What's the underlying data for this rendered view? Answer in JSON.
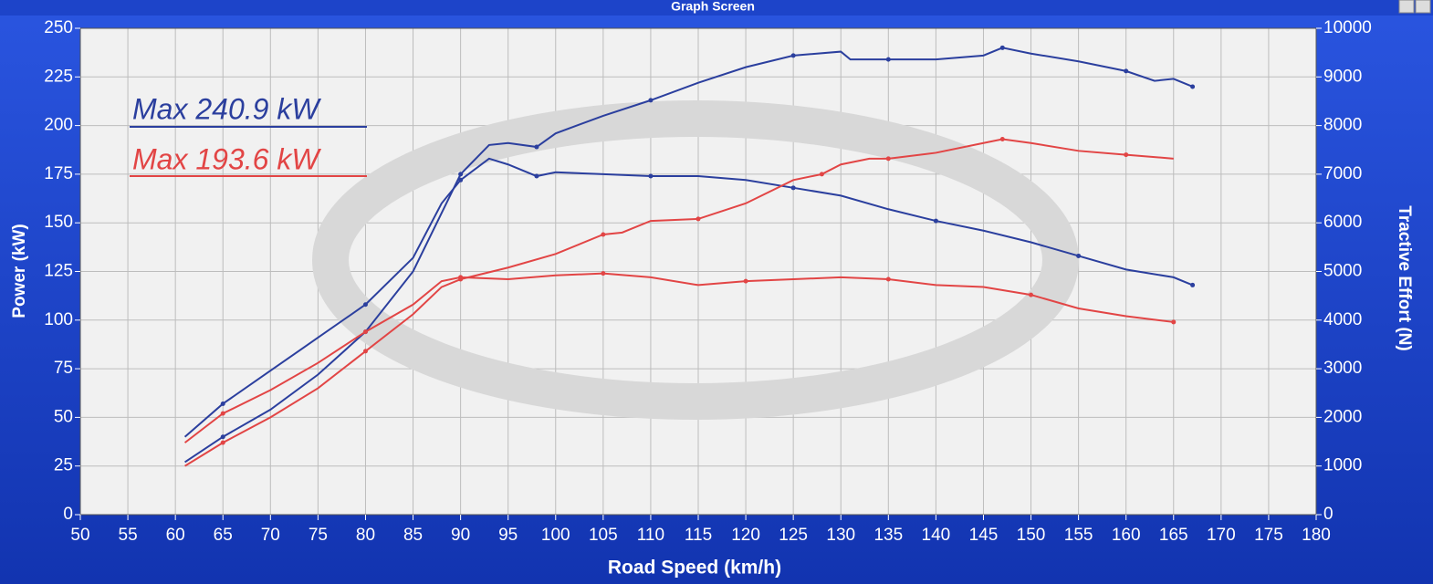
{
  "window_title": "Graph Screen",
  "chart_data": {
    "type": "line",
    "xlabel": "Road Speed (km/h)",
    "ylabel": "Power (kW)",
    "y2label": "Tractive Effort (N)",
    "annotations": [
      {
        "text": "Max 240.9 kW",
        "color": "#2b3f9e"
      },
      {
        "text": "Max 193.6 kW",
        "color": "#e24545"
      }
    ],
    "xlim": [
      50,
      180
    ],
    "xticks": [
      50,
      55,
      60,
      65,
      70,
      75,
      80,
      85,
      90,
      95,
      100,
      105,
      110,
      115,
      120,
      125,
      130,
      135,
      140,
      145,
      150,
      155,
      160,
      165,
      170,
      175,
      180
    ],
    "ylim": [
      0,
      250
    ],
    "yticks": [
      0,
      25,
      50,
      75,
      100,
      125,
      150,
      175,
      200,
      225,
      250
    ],
    "y2lim": [
      0,
      10000
    ],
    "y2ticks": [
      0,
      1000,
      2000,
      3000,
      4000,
      5000,
      6000,
      7000,
      8000,
      9000,
      10000
    ],
    "grid": true,
    "series": [
      {
        "color": "#2b3f9e",
        "axis": "y",
        "x": [
          61,
          65,
          70,
          75,
          80,
          85,
          88,
          90,
          93,
          95,
          98,
          100,
          105,
          110,
          115,
          120,
          125,
          130,
          131,
          135,
          140,
          145,
          147,
          150,
          155,
          160,
          163,
          165,
          167
        ],
        "values": [
          27,
          40,
          54,
          72,
          94,
          125,
          155,
          175,
          190,
          191,
          189,
          196,
          205,
          213,
          222,
          230,
          236,
          238,
          234,
          234,
          234,
          236,
          240,
          237,
          233,
          228,
          223,
          224,
          220
        ]
      },
      {
        "color": "#2b3f9e",
        "axis": "y2",
        "x": [
          61,
          65,
          70,
          75,
          80,
          85,
          88,
          90,
          93,
          95,
          98,
          100,
          105,
          110,
          115,
          120,
          125,
          130,
          135,
          140,
          145,
          150,
          155,
          160,
          165,
          167
        ],
        "values": [
          1600,
          2280,
          2960,
          3640,
          4320,
          5280,
          6400,
          6880,
          7320,
          7200,
          6960,
          7040,
          7000,
          6960,
          6960,
          6880,
          6720,
          6560,
          6280,
          6040,
          5840,
          5600,
          5320,
          5040,
          4880,
          4720
        ]
      },
      {
        "color": "#e24545",
        "axis": "y",
        "x": [
          61,
          65,
          70,
          75,
          80,
          85,
          88,
          90,
          95,
          100,
          105,
          107,
          110,
          115,
          120,
          125,
          128,
          130,
          133,
          135,
          140,
          145,
          147,
          150,
          155,
          160,
          165
        ],
        "values": [
          25,
          37,
          50,
          65,
          84,
          103,
          117,
          121,
          127,
          134,
          144,
          145,
          151,
          152,
          160,
          172,
          175,
          180,
          183,
          183,
          186,
          191,
          193,
          191,
          187,
          185,
          183
        ]
      },
      {
        "color": "#e24545",
        "axis": "y2",
        "x": [
          61,
          65,
          70,
          75,
          80,
          85,
          88,
          90,
          95,
          100,
          105,
          110,
          115,
          120,
          125,
          130,
          135,
          140,
          145,
          150,
          155,
          160,
          165
        ],
        "values": [
          1480,
          2080,
          2560,
          3120,
          3760,
          4320,
          4800,
          4880,
          4840,
          4920,
          4960,
          4880,
          4720,
          4800,
          4840,
          4880,
          4840,
          4720,
          4680,
          4520,
          4240,
          4080,
          3960
        ]
      }
    ]
  }
}
